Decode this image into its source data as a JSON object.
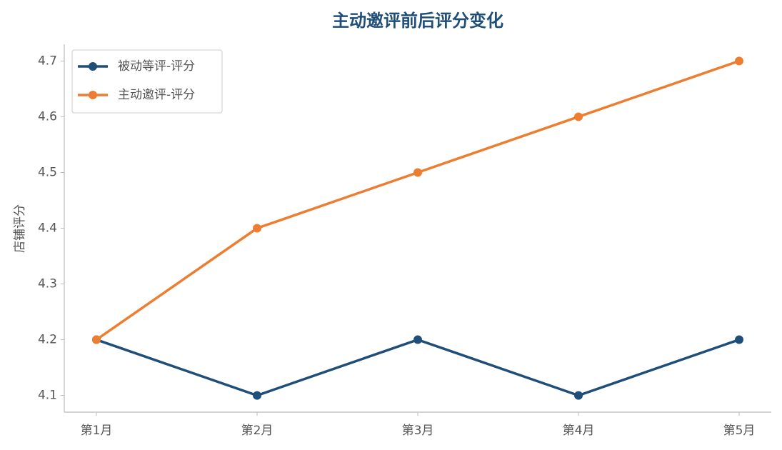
{
  "chart_data": {
    "type": "line",
    "title": "主动邀评前后评分变化",
    "y_label": "店铺评分",
    "categories": [
      "第1月",
      "第2月",
      "第3月",
      "第4月",
      "第5月"
    ],
    "series": [
      {
        "name": "被动等评-评分",
        "color": "#1f4e79",
        "values": [
          4.2,
          4.1,
          4.2,
          4.1,
          4.2
        ]
      },
      {
        "name": "主动邀评-评分",
        "color": "#ed7d31",
        "values": [
          4.2,
          4.4,
          4.5,
          4.6,
          4.7
        ]
      }
    ],
    "ylim": [
      4.07,
      4.73
    ],
    "yticks": [
      4.1,
      4.2,
      4.3,
      4.4,
      4.5,
      4.6,
      4.7
    ],
    "grid": false,
    "legend": "upper-left"
  }
}
